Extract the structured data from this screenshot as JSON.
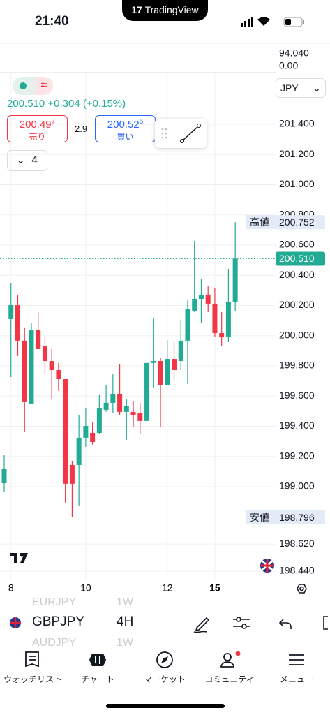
{
  "status_bar": {
    "time": "21:40",
    "app": "TradingView"
  },
  "header": {
    "top_value": "94.040",
    "zero_value": "0.00",
    "currency": "JPY"
  },
  "quote": {
    "change_line": "200.510 +0.304 (+0.15%)",
    "sell": {
      "price": "200.49",
      "pip": "7",
      "label": "売り"
    },
    "spread": "2.9",
    "buy": {
      "price": "200.52",
      "pip": "6",
      "label": "買い"
    },
    "interval_count": "4"
  },
  "chart_data": {
    "type": "candlestick",
    "categories": [
      null,
      "8",
      null,
      null,
      null,
      null,
      null,
      null,
      null,
      null,
      null,
      null,
      "10",
      null,
      null,
      null,
      null,
      null,
      null,
      null,
      null,
      null,
      null,
      null,
      "12",
      null,
      null,
      null,
      null,
      null,
      null,
      "15",
      null,
      null,
      null
    ],
    "open": [
      199.023,
      200.11,
      200.202,
      199.967,
      199.55,
      200.036,
      199.934,
      199.832,
      199.772,
      199.712,
      199.143,
      199.143,
      199.324,
      199.356,
      199.356,
      199.509,
      199.555,
      199.615,
      199.495,
      199.495,
      199.486,
      199.435,
      199.819,
      199.832,
      199.675,
      199.846,
      199.832,
      199.967,
      200.165,
      200.244,
      200.272,
      200.212,
      200.017,
      199.994,
      200.221
    ],
    "high": [
      199.208,
      200.35,
      200.267,
      200.05,
      200.087,
      200.156,
      199.99,
      199.911,
      199.819,
      199.712,
      199.171,
      199.472,
      199.518,
      199.426,
      199.611,
      199.671,
      199.749,
      199.809,
      199.578,
      199.564,
      199.555,
      199.819,
      200.119,
      199.856,
      199.971,
      199.957,
      200.105,
      200.235,
      200.628,
      200.373,
      200.327,
      200.318,
      200.156,
      200.443,
      200.752
    ],
    "low": [
      198.963,
      199.726,
      199.865,
      199.365,
      199.55,
      199.911,
      199.749,
      199.578,
      199.634,
      198.894,
      198.797,
      198.875,
      199.264,
      199.278,
      199.347,
      199.495,
      199.486,
      199.472,
      199.31,
      199.393,
      199.347,
      199.435,
      199.657,
      199.393,
      199.675,
      199.703,
      199.772,
      199.68,
      200.156,
      200.087,
      200.156,
      199.994,
      199.934,
      199.957,
      200.165
    ],
    "close": [
      199.116,
      200.202,
      199.967,
      199.56,
      200.036,
      199.911,
      199.832,
      199.772,
      199.712,
      199.019,
      199.019,
      199.324,
      199.402,
      199.296,
      199.518,
      199.555,
      199.615,
      199.495,
      199.532,
      199.472,
      199.435,
      199.819,
      199.832,
      199.675,
      199.846,
      199.772,
      199.967,
      200.179,
      200.244,
      200.272,
      200.212,
      200.017,
      199.99,
      200.221,
      200.51
    ],
    "up_color": "#22ab94",
    "down_color": "#f23645",
    "ylim": [
      198.269,
      201.969
    ],
    "yticks": [
      {
        "value": 201.4,
        "label": "201.400"
      },
      {
        "value": 201.2,
        "label": "201.200"
      },
      {
        "value": 201.0,
        "label": "201.000"
      },
      {
        "value": 200.8,
        "label": "200.800"
      },
      {
        "value": 200.6,
        "label": "200.600"
      },
      {
        "value": 200.4,
        "label": "200.400"
      },
      {
        "value": 200.2,
        "label": "200.200"
      },
      {
        "value": 200.0,
        "label": "200.000"
      },
      {
        "value": 199.8,
        "label": "199.800"
      },
      {
        "value": 199.6,
        "label": "199.600"
      },
      {
        "value": 199.4,
        "label": "199.400"
      },
      {
        "value": 199.2,
        "label": "199.200"
      },
      {
        "value": 199.0,
        "label": "199.000"
      },
      {
        "value": 198.62,
        "label": "198.620"
      },
      {
        "value": 198.44,
        "label": "198.440"
      }
    ],
    "grid": true,
    "high_marker": {
      "label": "高値",
      "value": 200.752
    },
    "low_marker": {
      "label": "安値",
      "value": 198.796
    },
    "last_price": {
      "value": 200.51,
      "label": "200.510"
    }
  },
  "toolbar": {
    "symbol": "GBPJPY",
    "interval": "4H",
    "ghost_above": {
      "symbol": "EURJPY",
      "interval": "1W"
    },
    "ghost_below": {
      "symbol": "AUDJPY",
      "interval": "1W"
    }
  },
  "nav": {
    "items": [
      "ウォッチリスト",
      "チャート",
      "マーケット",
      "コミュニティ",
      "メニュー"
    ]
  }
}
